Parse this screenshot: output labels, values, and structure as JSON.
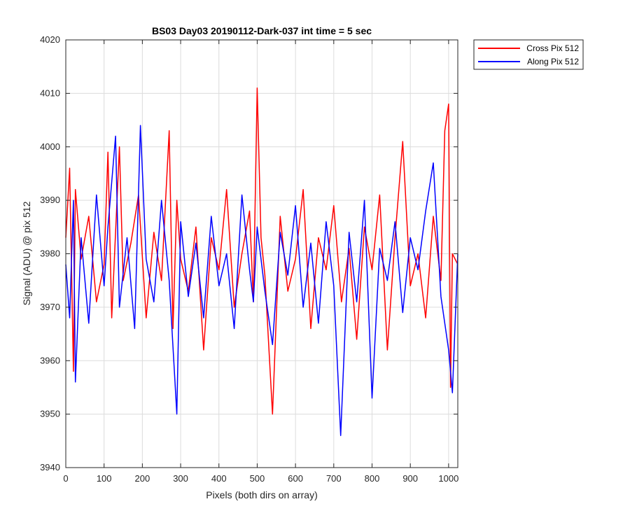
{
  "chart_data": {
    "type": "line",
    "title": "BS03 Day03 20190112-Dark-037 int time = 5 sec",
    "xlabel": "Pixels (both dirs on array)",
    "ylabel": "Signal (ADU) @ pix 512",
    "xlim": [
      0,
      1024
    ],
    "ylim": [
      3940,
      4020
    ],
    "xticks": [
      0,
      100,
      200,
      300,
      400,
      500,
      600,
      700,
      800,
      900,
      1000
    ],
    "yticks": [
      3940,
      3950,
      3960,
      3970,
      3980,
      3990,
      4000,
      4010,
      4020
    ],
    "grid": true,
    "legend_position": "outside-top-right",
    "series": [
      {
        "name": "Cross Pix 512",
        "color": "#ff0000",
        "x": [
          0,
          10,
          20,
          25,
          40,
          60,
          80,
          100,
          110,
          120,
          140,
          150,
          170,
          190,
          210,
          230,
          250,
          270,
          280,
          290,
          300,
          320,
          340,
          360,
          380,
          400,
          420,
          440,
          460,
          480,
          490,
          500,
          510,
          520,
          540,
          560,
          580,
          600,
          620,
          640,
          660,
          680,
          700,
          720,
          740,
          760,
          780,
          800,
          820,
          840,
          860,
          880,
          900,
          920,
          940,
          960,
          980,
          990,
          1000,
          1005,
          1010,
          1024
        ],
        "y": [
          3983,
          3996,
          3958,
          3992,
          3979,
          3987,
          3971,
          3978,
          3999,
          3968,
          4000,
          3975,
          3982,
          3991,
          3968,
          3984,
          3975,
          4003,
          3966,
          3990,
          3979,
          3973,
          3985,
          3962,
          3983,
          3977,
          3992,
          3970,
          3980,
          3988,
          3971,
          4011,
          3983,
          3976,
          3950,
          3987,
          3973,
          3979,
          3992,
          3966,
          3983,
          3977,
          3989,
          3971,
          3981,
          3964,
          3985,
          3977,
          3991,
          3962,
          3983,
          4001,
          3974,
          3980,
          3968,
          3987,
          3975,
          4003,
          4008,
          3955,
          3980,
          3978
        ]
      },
      {
        "name": "Along Pix 512",
        "color": "#0000ff",
        "x": [
          0,
          10,
          20,
          25,
          40,
          60,
          80,
          100,
          110,
          130,
          140,
          160,
          180,
          195,
          210,
          230,
          250,
          270,
          290,
          300,
          320,
          340,
          360,
          380,
          400,
          420,
          440,
          460,
          480,
          490,
          500,
          520,
          540,
          560,
          580,
          600,
          620,
          640,
          660,
          680,
          700,
          718,
          740,
          760,
          780,
          800,
          820,
          840,
          860,
          880,
          900,
          920,
          940,
          960,
          980,
          1000,
          1010,
          1024
        ],
        "y": [
          3978,
          3968,
          3990,
          3956,
          3983,
          3967,
          3991,
          3974,
          3985,
          4002,
          3970,
          3983,
          3966,
          4004,
          3979,
          3971,
          3990,
          3975,
          3950,
          3986,
          3972,
          3982,
          3968,
          3987,
          3974,
          3980,
          3966,
          3991,
          3977,
          3971,
          3985,
          3973,
          3963,
          3984,
          3976,
          3989,
          3970,
          3982,
          3967,
          3986,
          3974,
          3946,
          3984,
          3971,
          3990,
          3953,
          3981,
          3975,
          3986,
          3969,
          3983,
          3977,
          3988,
          3997,
          3972,
          3962,
          3954,
          3980
        ]
      }
    ]
  }
}
